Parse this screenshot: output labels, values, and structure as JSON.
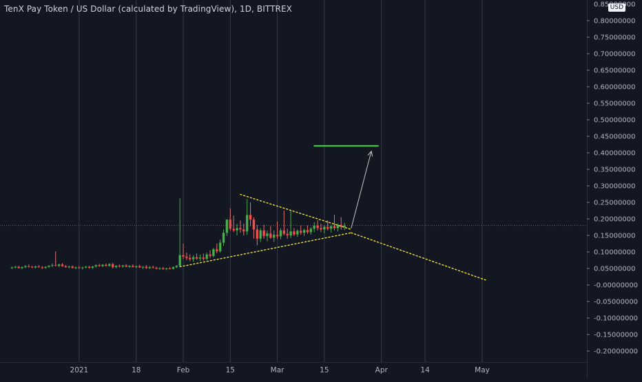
{
  "title": "TenX Pay Token / US Dollar (calculated by TradingView), 1D, BITTREX",
  "currency_label": "USD",
  "colors": {
    "background": "#131722",
    "up": "#26a69a",
    "up_fill": "#4caf50",
    "down": "#ef5350",
    "grid": "#363a45",
    "trendline": "#f0e040",
    "target": "#33dd33",
    "price_line": "#d83a3a",
    "arrow": "#c8c8c8"
  },
  "chart_data": {
    "type": "candlestick",
    "title": "TenX Pay Token / US Dollar (calculated by TradingView), 1D, BITTREX",
    "ylim": [
      -0.22,
      0.86
    ],
    "y_ticks": [
      0.8,
      0.75,
      0.7,
      0.65,
      0.6,
      0.55,
      0.5,
      0.45,
      0.4,
      0.35,
      0.3,
      0.25,
      0.2,
      0.15,
      0.1,
      0.05,
      0,
      -0.05,
      -0.1,
      -0.15,
      -0.2
    ],
    "y_tick_labels": [
      "0.80000000",
      "0.75000000",
      "0.70000000",
      "0.65000000",
      "0.60000000",
      "0.55000000",
      "0.50000000",
      "0.45000000",
      "0.40000000",
      "0.35000000",
      "0.30000000",
      "0.25000000",
      "0.20000000",
      "0.15000000",
      "0.10000000",
      "0.05000000",
      "-0.00000000",
      "-0.05000000",
      "-0.10000000",
      "-0.15000000",
      "-0.20000000"
    ],
    "top_label_partial": "0.85000000",
    "x_ticks": [
      {
        "label": "2021",
        "date": "2021-01-01"
      },
      {
        "label": "18",
        "date": "2021-01-18"
      },
      {
        "label": "Feb",
        "date": "2021-02-01"
      },
      {
        "label": "15",
        "date": "2021-02-15"
      },
      {
        "label": "Mar",
        "date": "2021-03-01"
      },
      {
        "label": "15",
        "date": "2021-03-15"
      },
      {
        "label": "Apr",
        "date": "2021-04-01"
      },
      {
        "label": "14",
        "date": "2021-04-14"
      },
      {
        "label": "May",
        "date": "2021-05-01"
      }
    ],
    "x_start": "2020-12-11",
    "current_price": 0.18,
    "candles": [
      [
        "2020-12-12",
        0.052,
        0.056,
        0.048,
        0.053
      ],
      [
        "2020-12-13",
        0.053,
        0.058,
        0.05,
        0.055
      ],
      [
        "2020-12-14",
        0.055,
        0.058,
        0.05,
        0.051
      ],
      [
        "2020-12-15",
        0.051,
        0.056,
        0.048,
        0.054
      ],
      [
        "2020-12-16",
        0.054,
        0.06,
        0.051,
        0.057
      ],
      [
        "2020-12-17",
        0.057,
        0.062,
        0.053,
        0.055
      ],
      [
        "2020-12-18",
        0.055,
        0.058,
        0.051,
        0.053
      ],
      [
        "2020-12-19",
        0.053,
        0.058,
        0.05,
        0.056
      ],
      [
        "2020-12-20",
        0.056,
        0.06,
        0.052,
        0.054
      ],
      [
        "2020-12-21",
        0.054,
        0.057,
        0.048,
        0.052
      ],
      [
        "2020-12-22",
        0.052,
        0.056,
        0.049,
        0.055
      ],
      [
        "2020-12-23",
        0.055,
        0.06,
        0.052,
        0.058
      ],
      [
        "2020-12-24",
        0.058,
        0.065,
        0.054,
        0.06
      ],
      [
        "2020-12-25",
        0.06,
        0.102,
        0.056,
        0.058
      ],
      [
        "2020-12-26",
        0.058,
        0.064,
        0.054,
        0.062
      ],
      [
        "2020-12-27",
        0.062,
        0.066,
        0.055,
        0.057
      ],
      [
        "2020-12-28",
        0.057,
        0.06,
        0.052,
        0.054
      ],
      [
        "2020-12-29",
        0.054,
        0.058,
        0.05,
        0.056
      ],
      [
        "2020-12-30",
        0.056,
        0.059,
        0.05,
        0.052
      ],
      [
        "2020-12-31",
        0.052,
        0.056,
        0.048,
        0.053
      ],
      [
        "2021-01-01",
        0.053,
        0.057,
        0.049,
        0.051
      ],
      [
        "2021-01-02",
        0.051,
        0.055,
        0.047,
        0.053
      ],
      [
        "2021-01-03",
        0.053,
        0.058,
        0.05,
        0.055
      ],
      [
        "2021-01-04",
        0.055,
        0.058,
        0.05,
        0.052
      ],
      [
        "2021-01-05",
        0.052,
        0.057,
        0.049,
        0.056
      ],
      [
        "2021-01-06",
        0.056,
        0.062,
        0.053,
        0.06
      ],
      [
        "2021-01-07",
        0.06,
        0.064,
        0.055,
        0.057
      ],
      [
        "2021-01-08",
        0.057,
        0.063,
        0.054,
        0.061
      ],
      [
        "2021-01-09",
        0.061,
        0.065,
        0.056,
        0.058
      ],
      [
        "2021-01-10",
        0.058,
        0.066,
        0.055,
        0.063
      ],
      [
        "2021-01-11",
        0.063,
        0.067,
        0.05,
        0.054
      ],
      [
        "2021-01-12",
        0.054,
        0.06,
        0.051,
        0.058
      ],
      [
        "2021-01-13",
        0.058,
        0.062,
        0.053,
        0.056
      ],
      [
        "2021-01-14",
        0.056,
        0.061,
        0.052,
        0.059
      ],
      [
        "2021-01-15",
        0.059,
        0.063,
        0.054,
        0.055
      ],
      [
        "2021-01-16",
        0.055,
        0.06,
        0.052,
        0.058
      ],
      [
        "2021-01-17",
        0.058,
        0.062,
        0.053,
        0.054
      ],
      [
        "2021-01-18",
        0.054,
        0.059,
        0.051,
        0.057
      ],
      [
        "2021-01-19",
        0.057,
        0.061,
        0.052,
        0.053
      ],
      [
        "2021-01-20",
        0.053,
        0.057,
        0.048,
        0.055
      ],
      [
        "2021-01-21",
        0.055,
        0.06,
        0.049,
        0.051
      ],
      [
        "2021-01-22",
        0.051,
        0.057,
        0.048,
        0.054
      ],
      [
        "2021-01-23",
        0.054,
        0.058,
        0.05,
        0.052
      ],
      [
        "2021-01-24",
        0.052,
        0.055,
        0.047,
        0.049
      ],
      [
        "2021-01-25",
        0.049,
        0.053,
        0.046,
        0.051
      ],
      [
        "2021-01-26",
        0.051,
        0.054,
        0.046,
        0.048
      ],
      [
        "2021-01-27",
        0.048,
        0.052,
        0.045,
        0.05
      ],
      [
        "2021-01-28",
        0.05,
        0.054,
        0.047,
        0.049
      ],
      [
        "2021-01-29",
        0.049,
        0.056,
        0.047,
        0.054
      ],
      [
        "2021-01-30",
        0.054,
        0.06,
        0.051,
        0.058
      ],
      [
        "2021-01-31",
        0.058,
        0.262,
        0.055,
        0.09
      ],
      [
        "2021-02-01",
        0.09,
        0.125,
        0.078,
        0.086
      ],
      [
        "2021-02-02",
        0.086,
        0.098,
        0.075,
        0.082
      ],
      [
        "2021-02-03",
        0.082,
        0.093,
        0.072,
        0.078
      ],
      [
        "2021-02-04",
        0.078,
        0.09,
        0.07,
        0.084
      ],
      [
        "2021-02-05",
        0.084,
        0.095,
        0.076,
        0.08
      ],
      [
        "2021-02-06",
        0.08,
        0.092,
        0.072,
        0.083
      ],
      [
        "2021-02-07",
        0.083,
        0.095,
        0.074,
        0.079
      ],
      [
        "2021-02-08",
        0.079,
        0.098,
        0.075,
        0.092
      ],
      [
        "2021-02-09",
        0.092,
        0.105,
        0.082,
        0.088
      ],
      [
        "2021-02-10",
        0.088,
        0.112,
        0.084,
        0.108
      ],
      [
        "2021-02-11",
        0.108,
        0.125,
        0.096,
        0.102
      ],
      [
        "2021-02-12",
        0.102,
        0.138,
        0.098,
        0.128
      ],
      [
        "2021-02-13",
        0.128,
        0.168,
        0.118,
        0.158
      ],
      [
        "2021-02-14",
        0.158,
        0.195,
        0.148,
        0.198
      ],
      [
        "2021-02-15",
        0.198,
        0.232,
        0.165,
        0.17
      ],
      [
        "2021-02-16",
        0.17,
        0.21,
        0.16,
        0.165
      ],
      [
        "2021-02-17",
        0.165,
        0.185,
        0.15,
        0.172
      ],
      [
        "2021-02-18",
        0.172,
        0.195,
        0.158,
        0.168
      ],
      [
        "2021-02-19",
        0.168,
        0.186,
        0.15,
        0.162
      ],
      [
        "2021-02-20",
        0.162,
        0.26,
        0.152,
        0.212
      ],
      [
        "2021-02-21",
        0.212,
        0.25,
        0.178,
        0.198
      ],
      [
        "2021-02-22",
        0.198,
        0.205,
        0.14,
        0.168
      ],
      [
        "2021-02-23",
        0.168,
        0.182,
        0.12,
        0.14
      ],
      [
        "2021-02-24",
        0.14,
        0.172,
        0.13,
        0.165
      ],
      [
        "2021-02-25",
        0.165,
        0.182,
        0.14,
        0.148
      ],
      [
        "2021-02-26",
        0.148,
        0.165,
        0.132,
        0.156
      ],
      [
        "2021-02-27",
        0.156,
        0.178,
        0.14,
        0.143
      ],
      [
        "2021-02-28",
        0.143,
        0.165,
        0.13,
        0.152
      ],
      [
        "2021-03-01",
        0.152,
        0.192,
        0.14,
        0.147
      ],
      [
        "2021-03-02",
        0.147,
        0.172,
        0.138,
        0.165
      ],
      [
        "2021-03-03",
        0.165,
        0.225,
        0.15,
        0.155
      ],
      [
        "2021-03-04",
        0.155,
        0.17,
        0.14,
        0.15
      ],
      [
        "2021-03-05",
        0.15,
        0.226,
        0.142,
        0.162
      ],
      [
        "2021-03-06",
        0.162,
        0.172,
        0.148,
        0.153
      ],
      [
        "2021-03-07",
        0.153,
        0.168,
        0.145,
        0.164
      ],
      [
        "2021-03-08",
        0.164,
        0.18,
        0.152,
        0.158
      ],
      [
        "2021-03-09",
        0.158,
        0.17,
        0.148,
        0.166
      ],
      [
        "2021-03-10",
        0.166,
        0.18,
        0.155,
        0.16
      ],
      [
        "2021-03-11",
        0.16,
        0.175,
        0.152,
        0.17
      ],
      [
        "2021-03-12",
        0.17,
        0.19,
        0.16,
        0.18
      ],
      [
        "2021-03-13",
        0.18,
        0.196,
        0.165,
        0.172
      ],
      [
        "2021-03-14",
        0.172,
        0.185,
        0.16,
        0.168
      ],
      [
        "2021-03-15",
        0.168,
        0.18,
        0.156,
        0.176
      ],
      [
        "2021-03-16",
        0.176,
        0.195,
        0.165,
        0.17
      ],
      [
        "2021-03-17",
        0.17,
        0.182,
        0.158,
        0.178
      ],
      [
        "2021-03-18",
        0.178,
        0.212,
        0.165,
        0.172
      ],
      [
        "2021-03-19",
        0.172,
        0.186,
        0.162,
        0.182
      ],
      [
        "2021-03-20",
        0.182,
        0.205,
        0.168,
        0.176
      ],
      [
        "2021-03-21",
        0.176,
        0.188,
        0.166,
        0.18
      ]
    ],
    "drawings": {
      "upper_trendline": [
        [
          "2021-02-18",
          0.274
        ],
        [
          "2021-03-23",
          0.168
        ]
      ],
      "lower_trendline": [
        [
          "2021-01-31",
          0.055
        ],
        [
          "2021-03-23",
          0.158
        ]
      ],
      "projection_line": [
        [
          "2021-03-23",
          0.158
        ],
        [
          "2021-05-02",
          0.015
        ]
      ],
      "target_line": [
        [
          "2021-03-12",
          0.421
        ],
        [
          "2021-03-31",
          0.421
        ]
      ],
      "arrow": [
        [
          "2021-03-23",
          0.172
        ],
        [
          "2021-03-29",
          0.405
        ]
      ]
    }
  }
}
